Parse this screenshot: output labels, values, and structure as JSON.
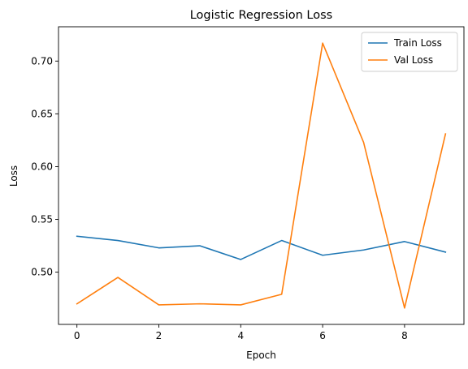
{
  "chart_data": {
    "type": "line",
    "title": "Logistic Regression Loss",
    "xlabel": "Epoch",
    "ylabel": "Loss",
    "x": [
      0,
      1,
      2,
      3,
      4,
      5,
      6,
      7,
      8,
      9
    ],
    "xlim": [
      -0.45,
      9.45
    ],
    "ylim": [
      0.4505,
      0.7325
    ],
    "xticks": [
      0,
      2,
      4,
      6,
      8
    ],
    "yticks": [
      0.5,
      0.55,
      0.6,
      0.65,
      0.7
    ],
    "ytick_labels": [
      "0.50",
      "0.55",
      "0.60",
      "0.65",
      "0.70"
    ],
    "grid": false,
    "legend_position": "top-right",
    "series": [
      {
        "name": "Train Loss",
        "color": "#1f77b4",
        "values": [
          0.534,
          0.53,
          0.523,
          0.525,
          0.512,
          0.53,
          0.516,
          0.521,
          0.529,
          0.519
        ]
      },
      {
        "name": "Val Loss",
        "color": "#ff7f0e",
        "values": [
          0.47,
          0.495,
          0.469,
          0.47,
          0.469,
          0.479,
          0.717,
          0.623,
          0.466,
          0.631
        ]
      }
    ]
  }
}
